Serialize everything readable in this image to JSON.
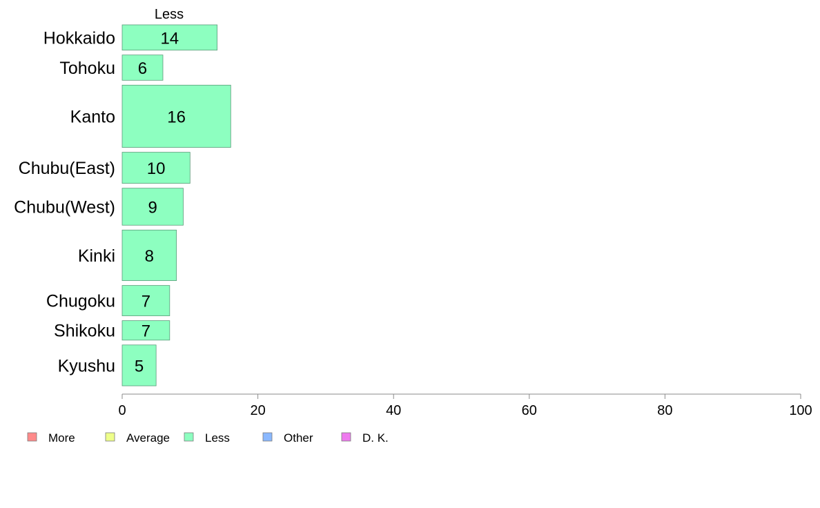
{
  "chart_data": {
    "type": "bar",
    "orientation": "horizontal",
    "stacked": true,
    "top_label": "Less",
    "categories": [
      "Hokkaido",
      "Tohoku",
      "Kanto",
      "Chubu(East)",
      "Chubu(West)",
      "Kinki",
      "Chugoku",
      "Shikoku",
      "Kyushu"
    ],
    "category_weights": [
      0.065,
      0.065,
      0.16,
      0.08,
      0.095,
      0.13,
      0.078,
      0.05,
      0.105
    ],
    "series": [
      {
        "name": "Less",
        "color": "#8dffc0",
        "values": [
          14,
          6,
          16,
          10,
          9,
          8,
          7,
          7,
          5
        ]
      }
    ],
    "value_labels": [
      "14",
      "6",
      "16",
      "10",
      "9",
      "8",
      "7",
      "7",
      "5"
    ],
    "xlim": [
      0,
      100
    ],
    "xticks": [
      0,
      20,
      40,
      60,
      80,
      100
    ],
    "xtick_labels": [
      "0",
      "20",
      "40",
      "60",
      "80",
      "100"
    ],
    "grid": false,
    "legend_position": "bottom-left",
    "legend": [
      {
        "label": "More",
        "color": "#ff8a8a"
      },
      {
        "label": "Average",
        "color": "#eeff8a"
      },
      {
        "label": "Less",
        "color": "#8dffc0"
      },
      {
        "label": "Other",
        "color": "#8ab8ff"
      },
      {
        "label": "D. K.",
        "color": "#ee7aee"
      }
    ]
  }
}
